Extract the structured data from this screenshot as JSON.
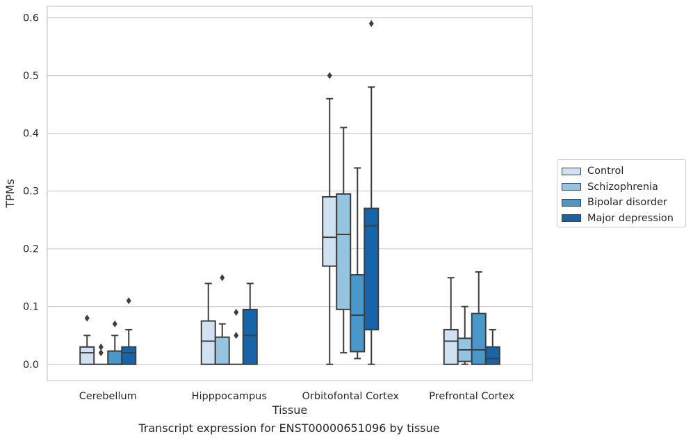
{
  "chart_data": {
    "type": "boxplot",
    "xlabel": "Tissue",
    "ylabel": "TPMs",
    "ylim": [
      -0.028,
      0.62
    ],
    "yticks": [
      0.0,
      0.1,
      0.2,
      0.3,
      0.4,
      0.5,
      0.6
    ],
    "ytick_labels": [
      "0.0",
      "0.1",
      "0.2",
      "0.3",
      "0.4",
      "0.5",
      "0.6"
    ],
    "grid": "horizontal",
    "legend_position": "right",
    "categories": [
      "Cerebellum",
      "Hipppocampus",
      "Orbitofontal Cortex",
      "Prefrontal Cortex"
    ],
    "series": [
      {
        "name": "Control",
        "color": "#d0e1f2",
        "boxes": [
          {
            "whislo": 0.0,
            "q1": 0.0,
            "med": 0.02,
            "q3": 0.03,
            "whishi": 0.05,
            "fliers": [
              0.08
            ]
          },
          {
            "whislo": 0.0,
            "q1": 0.0,
            "med": 0.04,
            "q3": 0.075,
            "whishi": 0.14,
            "fliers": []
          },
          {
            "whislo": 0.0,
            "q1": 0.17,
            "med": 0.22,
            "q3": 0.29,
            "whishi": 0.46,
            "fliers": [
              0.5
            ]
          },
          {
            "whislo": 0.0,
            "q1": 0.0,
            "med": 0.04,
            "q3": 0.06,
            "whishi": 0.15,
            "fliers": []
          }
        ]
      },
      {
        "name": "Schizophrenia",
        "color": "#94c4df",
        "boxes": [
          {
            "whislo": 0.0,
            "q1": 0.0,
            "med": 0.0,
            "q3": 0.0,
            "whishi": 0.0,
            "fliers": [
              0.02,
              0.03
            ]
          },
          {
            "whislo": 0.0,
            "q1": 0.0,
            "med": 0.0,
            "q3": 0.047,
            "whishi": 0.07,
            "fliers": [
              0.15
            ]
          },
          {
            "whislo": 0.02,
            "q1": 0.095,
            "med": 0.225,
            "q3": 0.295,
            "whishi": 0.41,
            "fliers": []
          },
          {
            "whislo": 0.0,
            "q1": 0.005,
            "med": 0.025,
            "q3": 0.045,
            "whishi": 0.1,
            "fliers": []
          }
        ]
      },
      {
        "name": "Bipolar disorder",
        "color": "#4a98c9",
        "boxes": [
          {
            "whislo": 0.0,
            "q1": 0.0,
            "med": 0.0,
            "q3": 0.023,
            "whishi": 0.05,
            "fliers": [
              0.07
            ]
          },
          {
            "whislo": 0.0,
            "q1": 0.0,
            "med": 0.0,
            "q3": 0.0,
            "whishi": 0.0,
            "fliers": [
              0.05,
              0.09
            ]
          },
          {
            "whislo": 0.01,
            "q1": 0.022,
            "med": 0.085,
            "q3": 0.155,
            "whishi": 0.34,
            "fliers": []
          },
          {
            "whislo": 0.0,
            "q1": 0.0,
            "med": 0.025,
            "q3": 0.088,
            "whishi": 0.16,
            "fliers": []
          }
        ]
      },
      {
        "name": "Major depression",
        "color": "#1764ab",
        "boxes": [
          {
            "whislo": 0.0,
            "q1": 0.0,
            "med": 0.02,
            "q3": 0.03,
            "whishi": 0.06,
            "fliers": [
              0.11
            ]
          },
          {
            "whislo": 0.0,
            "q1": 0.0,
            "med": 0.05,
            "q3": 0.095,
            "whishi": 0.14,
            "fliers": []
          },
          {
            "whislo": 0.0,
            "q1": 0.06,
            "med": 0.24,
            "q3": 0.27,
            "whishi": 0.48,
            "fliers": [
              0.59
            ]
          },
          {
            "whislo": 0.0,
            "q1": 0.0,
            "med": 0.01,
            "q3": 0.03,
            "whishi": 0.06,
            "fliers": []
          }
        ]
      }
    ],
    "caption": "Transcript expression for ENST00000651096 by tissue"
  }
}
